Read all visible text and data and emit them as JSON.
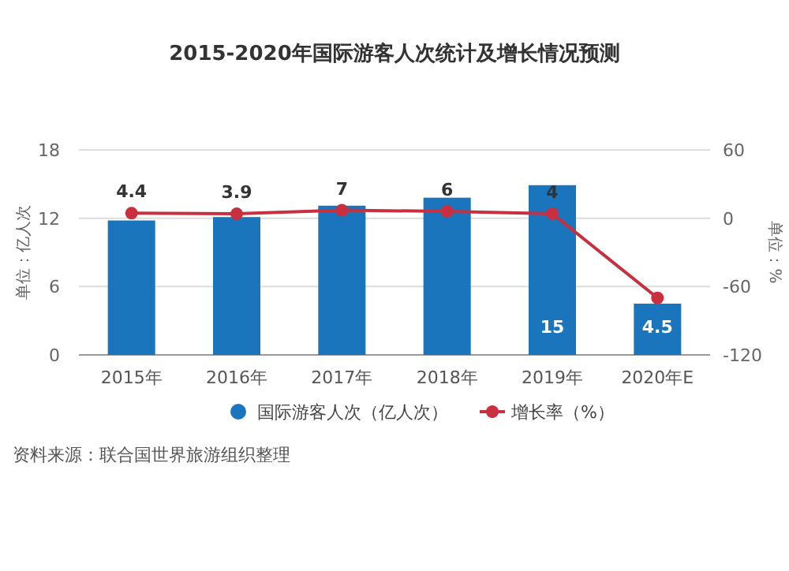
{
  "chart_data": {
    "type": "bar",
    "title": "2015-2020年国际游客人次统计及增长情况预测",
    "ylabel": "单位：亿人次",
    "y2label": "单位：%",
    "categories": [
      "2015年",
      "2016年",
      "2017年",
      "2018年",
      "2019年",
      "2020年E"
    ],
    "series": [
      {
        "name": "国际游客人次（亿人次）",
        "color": "#1a75bc",
        "values": [
          11.8,
          12.1,
          13.1,
          13.8,
          14.9,
          4.5
        ],
        "value_labels": [
          null,
          null,
          null,
          null,
          "15",
          "4.5"
        ]
      },
      {
        "name": "增长率（%）",
        "color": "#c8303f",
        "type": "line",
        "axis": "y2",
        "values": [
          4.4,
          3.9,
          7,
          6,
          4,
          -70
        ],
        "value_labels": [
          "4.4",
          "3.9",
          "7",
          "6",
          "4",
          null
        ]
      }
    ],
    "ylim": [
      0,
      18
    ],
    "yticks": [
      0,
      6,
      12,
      18
    ],
    "y2lim": [
      -120,
      60
    ],
    "y2ticks": [
      -120,
      -60,
      0,
      60
    ],
    "grid": "y",
    "legend": "bottom",
    "marker": "circle",
    "annotations": [
      "资料来源：联合国世界旅游组织整理"
    ]
  }
}
